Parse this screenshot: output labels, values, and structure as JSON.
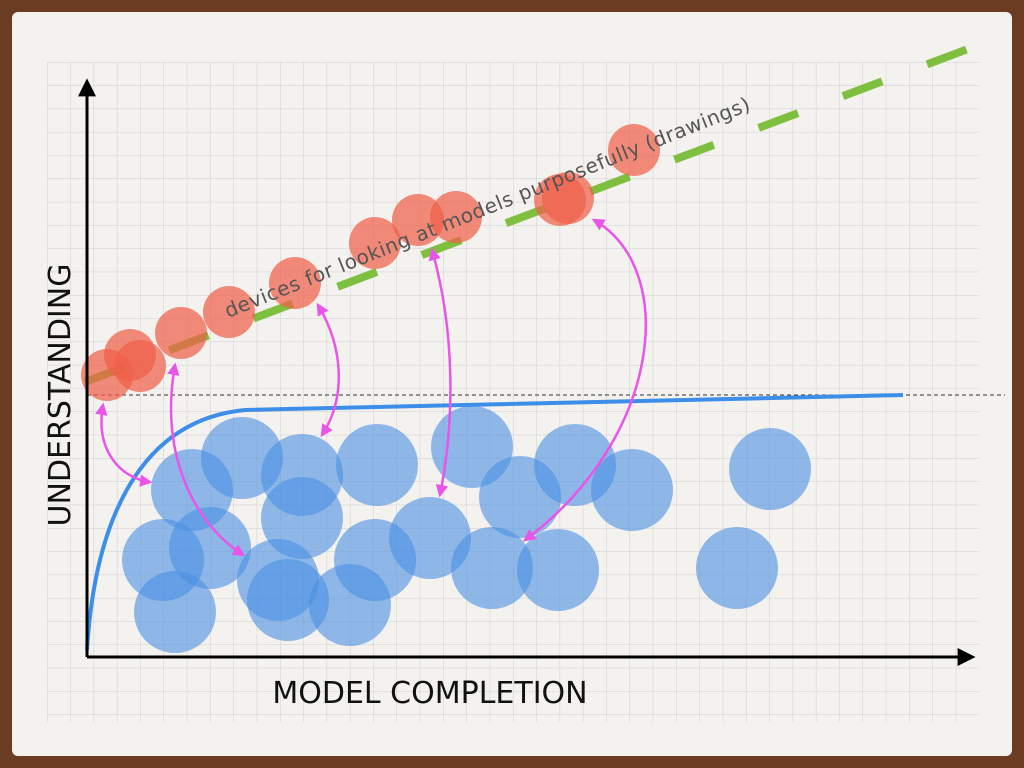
{
  "axes": {
    "y_label": "UNDERSTANDING",
    "x_label": "MODEL COMPLETION"
  },
  "annotation": "devices for looking at models purposefully (drawings)"
}
